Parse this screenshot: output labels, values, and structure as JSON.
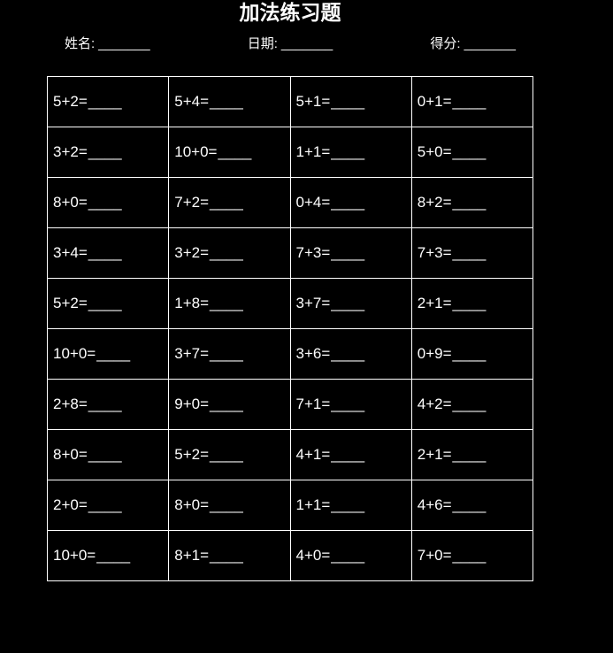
{
  "page": {
    "background_color": "#000000",
    "text_color": "#ffffff",
    "border_color": "#ffffff"
  },
  "title": "加法练习题",
  "header_fields": [
    {
      "name": "name",
      "label": "姓名:",
      "blank": "_______"
    },
    {
      "name": "date",
      "label": "日期:",
      "blank": "_______"
    },
    {
      "name": "score",
      "label": "得分:",
      "blank": "_______"
    }
  ],
  "worksheet": {
    "rows": 10,
    "columns": 4,
    "answer_blank": "____",
    "problems": [
      [
        "5+2=",
        "5+4=",
        "5+1=",
        "0+1="
      ],
      [
        "3+2=",
        "10+0=",
        "1+1=",
        "5+0="
      ],
      [
        "8+0=",
        "7+2=",
        "0+4=",
        "8+2="
      ],
      [
        "3+4=",
        "3+2=",
        "7+3=",
        "7+3="
      ],
      [
        "5+2=",
        "1+8=",
        "3+7=",
        "2+1="
      ],
      [
        "10+0=",
        "3+7=",
        "3+6=",
        "0+9="
      ],
      [
        "2+8=",
        "9+0=",
        "7+1=",
        "4+2="
      ],
      [
        "8+0=",
        "5+2=",
        "4+1=",
        "2+1="
      ],
      [
        "2+0=",
        "8+0=",
        "1+1=",
        "4+6="
      ],
      [
        "10+0=",
        "8+1=",
        "4+0=",
        "7+0="
      ]
    ]
  }
}
